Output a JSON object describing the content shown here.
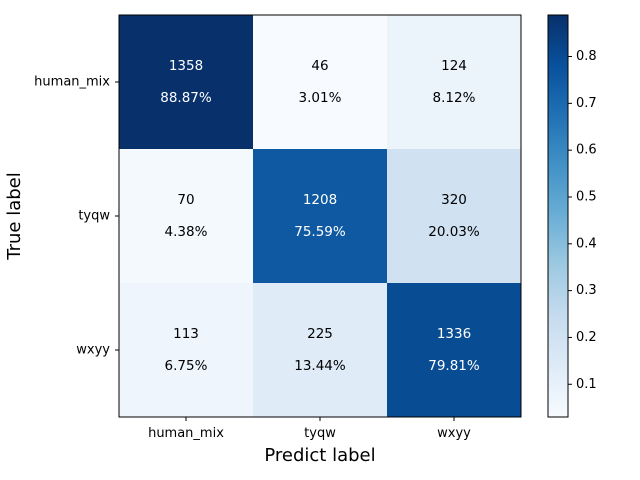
{
  "chart_data": {
    "type": "heatmap",
    "title": "",
    "xlabel": "Predict label",
    "ylabel": "True label",
    "x_categories": [
      "human_mix",
      "tyqw",
      "wxyy"
    ],
    "y_categories": [
      "human_mix",
      "tyqw",
      "wxyy"
    ],
    "counts": [
      [
        1358,
        46,
        124
      ],
      [
        70,
        1208,
        320
      ],
      [
        113,
        225,
        1336
      ]
    ],
    "percentages": [
      [
        "88.87%",
        "3.01%",
        "8.12%"
      ],
      [
        "4.38%",
        "75.59%",
        "20.03%"
      ],
      [
        "6.75%",
        "13.44%",
        "79.81%"
      ]
    ],
    "fractions": [
      [
        0.8887,
        0.0301,
        0.0812
      ],
      [
        0.0438,
        0.7559,
        0.2003
      ],
      [
        0.0675,
        0.1344,
        0.7981
      ]
    ],
    "colormap": "Blues",
    "colorbar": {
      "min": 0.0301,
      "max": 0.8887,
      "ticks": [
        0.1,
        0.2,
        0.3,
        0.4,
        0.5,
        0.6,
        0.7,
        0.8
      ],
      "tick_labels": [
        "0.1",
        "0.2",
        "0.3",
        "0.4",
        "0.5",
        "0.6",
        "0.7",
        "0.8"
      ]
    },
    "grid": false
  }
}
